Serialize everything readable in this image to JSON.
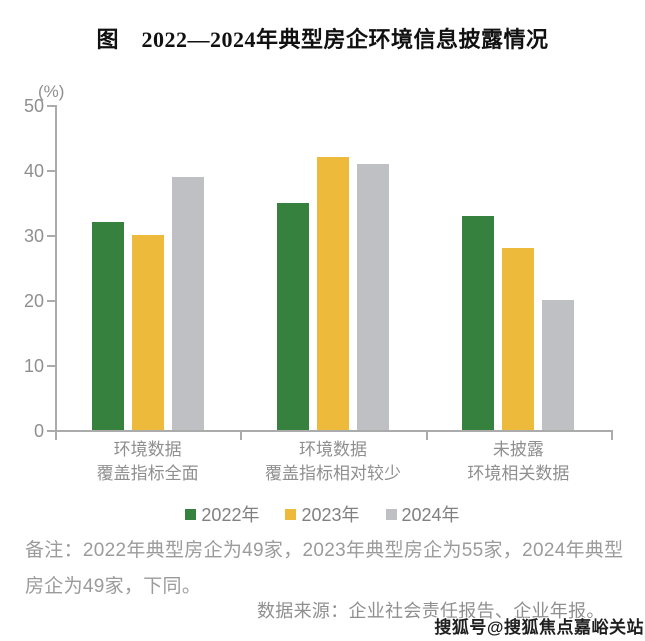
{
  "chart_data": {
    "type": "bar",
    "title": "图　2022—2024年典型房企环境信息披露情况",
    "unit_label": "(%)",
    "categories": [
      "环境数据\n覆盖指标全面",
      "环境数据\n覆盖指标相对较少",
      "未披露\n环境相关数据"
    ],
    "series": [
      {
        "name": "2022年",
        "color": "#37813F",
        "values": [
          32,
          35,
          33
        ]
      },
      {
        "name": "2023年",
        "color": "#EDBA3C",
        "values": [
          30,
          42,
          28
        ]
      },
      {
        "name": "2024年",
        "color": "#BFC0C3",
        "values": [
          39,
          41,
          20
        ]
      }
    ],
    "ylim": [
      0,
      50
    ],
    "yticks": [
      0,
      10,
      20,
      30,
      40,
      50
    ],
    "grid": false,
    "legend_position": "bottom"
  },
  "footnote": "备注：2022年典型房企为49家，2023年典型房企为55家，2024年典型房企为49家，下同。",
  "source": "数据来源：企业社会责任报告、企业年报。",
  "watermark": "搜狐号@搜狐焦点嘉峪关站"
}
